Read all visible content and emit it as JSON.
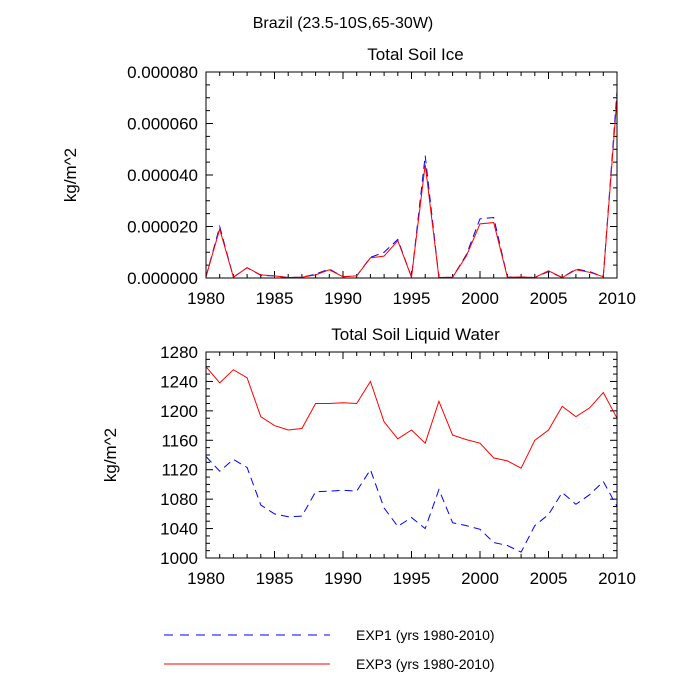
{
  "figure": {
    "title": "Brazil (23.5-10S,65-30W)"
  },
  "chart_data": [
    {
      "type": "line",
      "title": "Total Soil Ice",
      "xlabel": "",
      "ylabel": "kg/m^2",
      "xlim": [
        1980,
        2010
      ],
      "ylim": [
        0,
        8e-05
      ],
      "xticks": [
        1980,
        1985,
        1990,
        1995,
        2000,
        2005,
        2010
      ],
      "xtick_labels": [
        "1980",
        "1985",
        "1990",
        "1995",
        "2000",
        "2005",
        "2010"
      ],
      "yticks": [
        0,
        2e-05,
        4e-05,
        6e-05,
        8e-05
      ],
      "ytick_labels": [
        "0.000000",
        "0.000020",
        "0.000040",
        "0.000060",
        "0.000080"
      ],
      "x": [
        1980,
        1981,
        1982,
        1983,
        1984,
        1985,
        1986,
        1987,
        1988,
        1989,
        1990,
        1991,
        1992,
        1993,
        1994,
        1995,
        1996,
        1997,
        1998,
        1999,
        2000,
        2001,
        2002,
        2003,
        2004,
        2005,
        2006,
        2007,
        2008,
        2009,
        2010
      ],
      "series": [
        {
          "name": "EXP1 (yrs 1980-2010)",
          "color": "#0000ff",
          "dash": "dashed",
          "values": [
            5e-07,
            2e-05,
            3e-07,
            4e-06,
            1e-06,
            8e-07,
            2e-07,
            3e-07,
            1.5e-06,
            3.5e-06,
            5e-07,
            8e-07,
            8e-06,
            1e-05,
            1.5e-05,
            3e-07,
            4.75e-05,
            2e-07,
            3e-07,
            9e-06,
            2.3e-05,
            2.35e-05,
            3e-07,
            4e-07,
            2e-07,
            2.5e-06,
            2e-07,
            3.5e-06,
            2.5e-06,
            5e-07,
            7.25e-05
          ]
        },
        {
          "name": "EXP3 (yrs 1980-2010)",
          "color": "#ff0000",
          "dash": "solid",
          "values": [
            5e-07,
            1.9e-05,
            3e-07,
            4e-06,
            1.2e-06,
            8e-07,
            2e-07,
            3e-07,
            1.2e-06,
            3.2e-06,
            5e-07,
            8e-07,
            7.8e-06,
            8.5e-06,
            1.45e-05,
            3e-07,
            4.4e-05,
            2e-07,
            3e-07,
            8.5e-06,
            2.1e-05,
            2.15e-05,
            3e-07,
            4e-07,
            2e-07,
            2.8e-06,
            2e-07,
            3.2e-06,
            2.2e-06,
            5e-07,
            7e-05
          ]
        }
      ]
    },
    {
      "type": "line",
      "title": "Total Soil Liquid Water",
      "xlabel": "",
      "ylabel": "kg/m^2",
      "xlim": [
        1980,
        2010
      ],
      "ylim": [
        1000,
        1280
      ],
      "xticks": [
        1980,
        1985,
        1990,
        1995,
        2000,
        2005,
        2010
      ],
      "xtick_labels": [
        "1980",
        "1985",
        "1990",
        "1995",
        "2000",
        "2005",
        "2010"
      ],
      "yticks": [
        1000,
        1040,
        1080,
        1120,
        1160,
        1200,
        1240,
        1280
      ],
      "ytick_labels": [
        "1000",
        "1040",
        "1080",
        "1120",
        "1160",
        "1200",
        "1240",
        "1280"
      ],
      "x": [
        1980,
        1981,
        1982,
        1983,
        1984,
        1985,
        1986,
        1987,
        1988,
        1989,
        1990,
        1991,
        1992,
        1993,
        1994,
        1995,
        1996,
        1997,
        1998,
        1999,
        2000,
        2001,
        2002,
        2003,
        2004,
        2005,
        2006,
        2007,
        2008,
        2009,
        2010
      ],
      "series": [
        {
          "name": "EXP1 (yrs 1980-2010)",
          "color": "#0000ff",
          "dash": "dashed",
          "values": [
            1138,
            1118,
            1134,
            1123,
            1072,
            1060,
            1056,
            1057,
            1090,
            1091,
            1092,
            1091,
            1120,
            1068,
            1043,
            1055,
            1040,
            1093,
            1048,
            1044,
            1039,
            1021,
            1017,
            1008,
            1044,
            1059,
            1089,
            1073,
            1086,
            1104,
            1070
          ]
        },
        {
          "name": "EXP3 (yrs 1980-2010)",
          "color": "#ff0000",
          "dash": "solid",
          "values": [
            1260,
            1238,
            1256,
            1245,
            1192,
            1180,
            1174,
            1176,
            1210,
            1210,
            1211,
            1210,
            1240,
            1185,
            1162,
            1174,
            1156,
            1213,
            1167,
            1161,
            1156,
            1136,
            1132,
            1122,
            1160,
            1174,
            1206,
            1192,
            1204,
            1225,
            1190
          ]
        }
      ]
    }
  ],
  "legend": {
    "placement": "bottom",
    "entries": [
      {
        "label": "EXP1 (yrs 1980-2010)",
        "color": "#0000ff",
        "dash": "dashed"
      },
      {
        "label": "EXP3 (yrs 1980-2010)",
        "color": "#ff0000",
        "dash": "solid"
      }
    ]
  }
}
